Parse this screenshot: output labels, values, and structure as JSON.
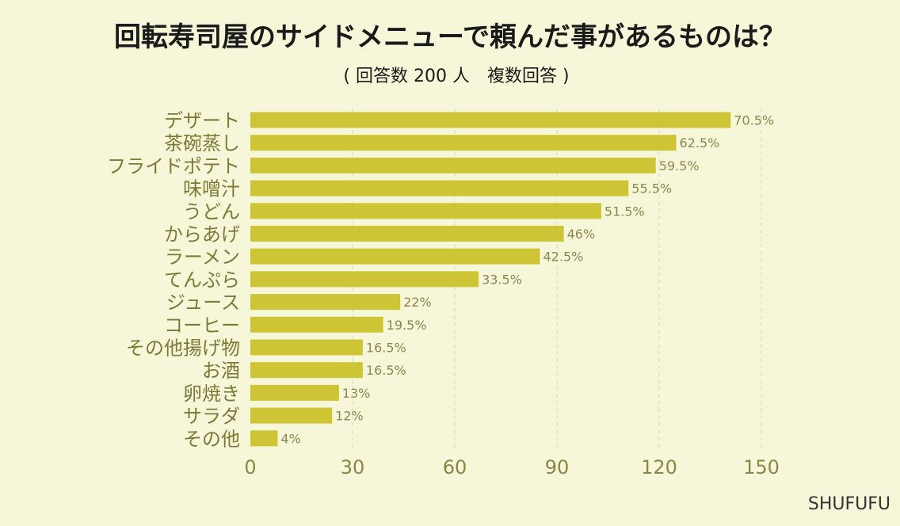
{
  "title": "回転寿司屋のサイドメニューで頼んだ事があるものは？",
  "subtitle": "( 回答数 200 人　複数回答 )",
  "credit": "SHUFUFU",
  "colors": {
    "background": "#f6f6d8",
    "bar": "#cdc536",
    "label": "#7d7a38"
  },
  "chart_data": {
    "type": "bar",
    "orientation": "horizontal",
    "title": "回転寿司屋のサイドメニューで頼んだ事があるものは？",
    "subtitle": "( 回答数 200 人　複数回答 )",
    "categories": [
      "デザート",
      "茶碗蒸し",
      "フライドポテト",
      "味噌汁",
      "うどん",
      "からあげ",
      "ラーメン",
      "てんぷら",
      "ジュース",
      "コーヒー",
      "その他揚げ物",
      "お酒",
      "卵焼き",
      "サラダ",
      "その他"
    ],
    "values": [
      141,
      125,
      119,
      111,
      103,
      92,
      85,
      67,
      44,
      39,
      33,
      33,
      26,
      24,
      8
    ],
    "value_labels": [
      "70.5%",
      "62.5%",
      "59.5%",
      "55.5%",
      "51.5%",
      "46%",
      "42.5%",
      "33.5%",
      "22%",
      "19.5%",
      "16.5%",
      "16.5%",
      "13%",
      "12%",
      "4%"
    ],
    "xlim": [
      0,
      165
    ],
    "xticks": [
      0,
      30,
      60,
      90,
      120,
      150
    ],
    "xtick_labels": [
      "0",
      "30",
      "60",
      "90",
      "120",
      "150"
    ],
    "grid": "vertical-dashed",
    "legend": "none"
  }
}
